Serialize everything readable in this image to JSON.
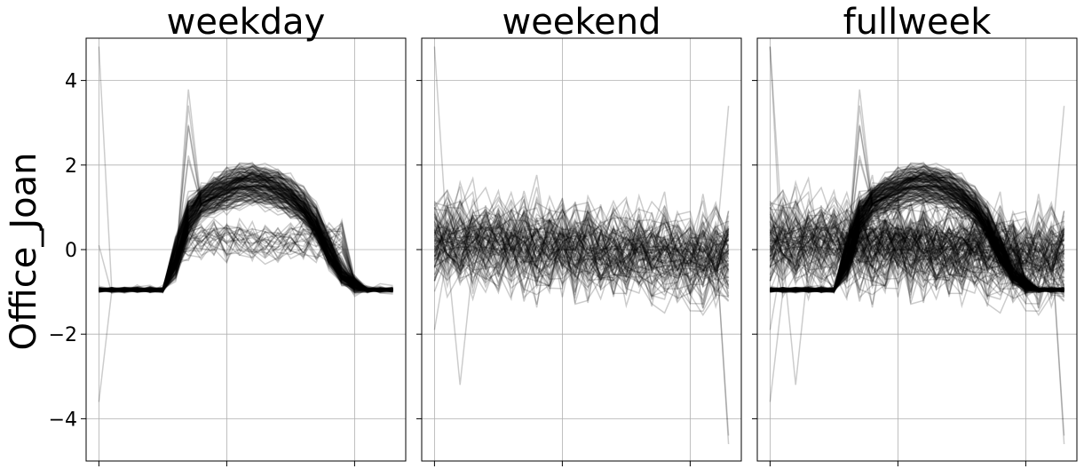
{
  "chart_data": {
    "type": "line",
    "ylabel": "Office_Joan",
    "ylim": [
      -5,
      5
    ],
    "yticks": [
      4,
      2,
      0,
      -2,
      -4
    ],
    "ytick_labels": [
      "4",
      "2",
      "0",
      "−2",
      "−4"
    ],
    "x": [
      0,
      1,
      2,
      3,
      4,
      5,
      6,
      7,
      8,
      9,
      10,
      11,
      12,
      13,
      14,
      15,
      16,
      17,
      18,
      19,
      20,
      21,
      22,
      23
    ],
    "xlim": [
      -1,
      24
    ],
    "xticks": [
      0,
      10,
      20
    ],
    "grid": true,
    "line_color": "#000000",
    "line_opacity": 0.2,
    "shared_y": true,
    "panels": [
      {
        "title": "weekday",
        "pattern": "weekday",
        "representative_profile": [
          -0.95,
          -0.95,
          -0.95,
          -0.95,
          -0.95,
          -0.9,
          -0.3,
          0.4,
          0.9,
          1.2,
          1.3,
          1.35,
          1.45,
          1.4,
          1.3,
          1.2,
          0.9,
          0.5,
          0.0,
          -0.6,
          -0.9,
          -0.95,
          -0.95,
          -0.95
        ],
        "notable_values": {
          "max": 4.0,
          "max_x": 7,
          "start_max": 4.8,
          "start_min": -3.6
        }
      },
      {
        "title": "weekend",
        "pattern": "weekend",
        "representative_profile": [
          0.3,
          0.2,
          0.1,
          0.0,
          0.0,
          0.0,
          -0.1,
          0.0,
          0.0,
          0.1,
          0.1,
          0.1,
          0.1,
          0.0,
          0.0,
          0.0,
          -0.1,
          -0.1,
          -0.2,
          -0.2,
          -0.2,
          -0.3,
          -0.2,
          -0.3
        ],
        "notable_values": {
          "max": 3.4,
          "min": -4.6,
          "start_max": 4.8,
          "end_min": -4.6
        }
      },
      {
        "title": "fullweek",
        "pattern": "fullweek",
        "representative_profile": [
          -0.6,
          -0.6,
          -0.65,
          -0.65,
          -0.65,
          -0.6,
          -0.2,
          0.3,
          0.65,
          0.9,
          0.95,
          1.0,
          1.05,
          1.0,
          0.95,
          0.85,
          0.6,
          0.3,
          -0.05,
          -0.45,
          -0.7,
          -0.75,
          -0.75,
          -0.75
        ],
        "notable_values": {
          "max": 4.0,
          "min": -4.6,
          "start_max": 4.8,
          "start_min": -3.6
        }
      }
    ]
  }
}
